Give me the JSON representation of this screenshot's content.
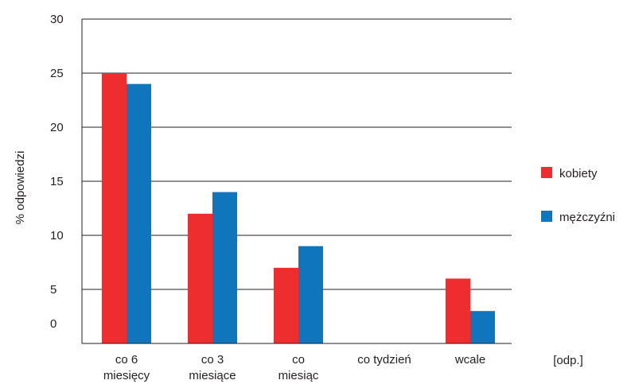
{
  "chart_data": {
    "type": "bar",
    "ylabel": "% odpowiedzi",
    "xlabel": "[odp.]",
    "ylim": [
      0,
      30
    ],
    "yticks": [
      "0",
      "5",
      "10",
      "15",
      "20",
      "25",
      "30"
    ],
    "categories": [
      [
        "co 6",
        "miesięcy"
      ],
      [
        "co 3",
        "miesiące"
      ],
      [
        "co",
        "miesiąc"
      ],
      [
        "co tydzień"
      ],
      [
        "wcale"
      ]
    ],
    "series": [
      {
        "name": "kobiety",
        "color": "#ee2e2e",
        "values": [
          25,
          12,
          7,
          0,
          6
        ]
      },
      {
        "name": "mężczyźni",
        "color": "#0f75bc",
        "values": [
          24,
          14,
          9,
          0,
          3
        ]
      }
    ],
    "grid": true,
    "legend_position": "right"
  }
}
